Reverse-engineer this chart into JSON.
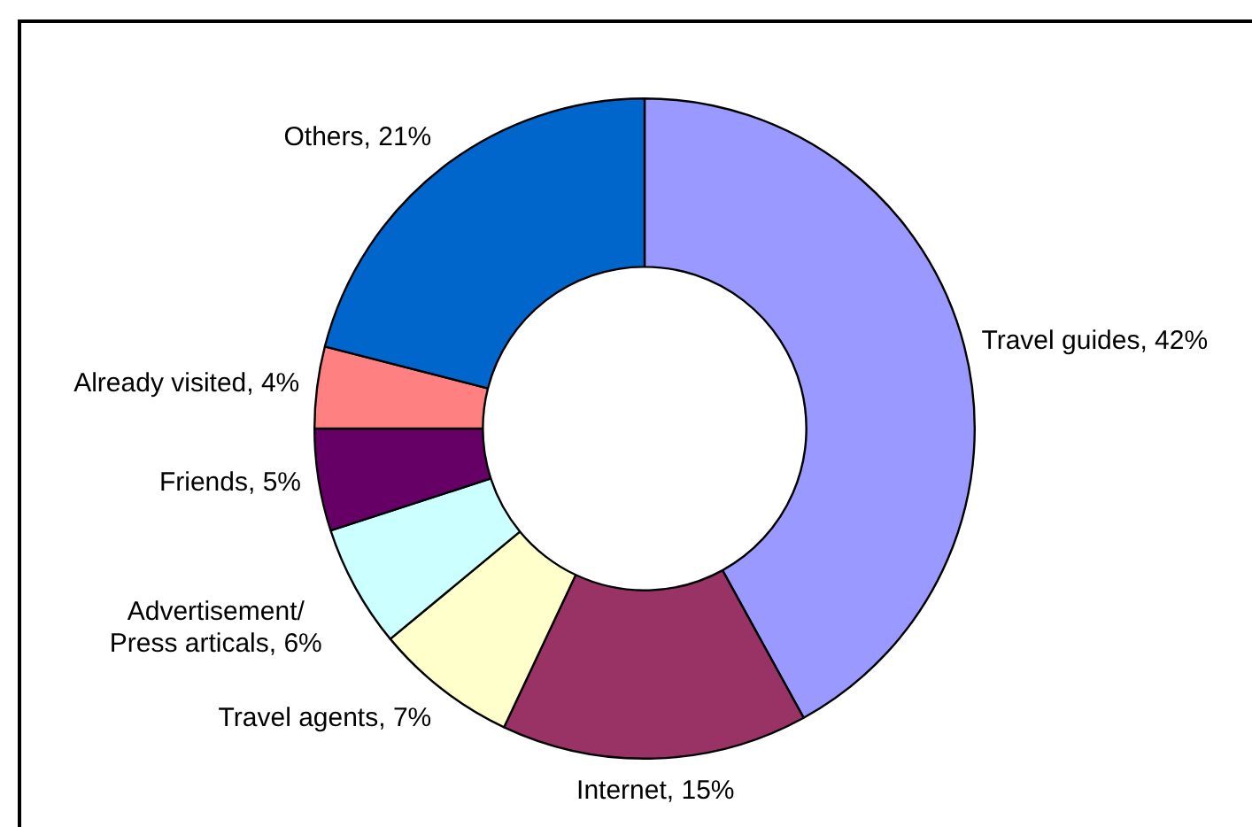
{
  "chart_data": {
    "type": "donut",
    "categories": [
      "Travel guides",
      "Internet",
      "Travel agents",
      "Advertisement/ Press articals",
      "Friends",
      "Already visited",
      "Others"
    ],
    "values": [
      42,
      15,
      7,
      6,
      5,
      4,
      21
    ],
    "colors": [
      "#9999ff",
      "#993366",
      "#ffffcc",
      "#ccffff",
      "#660066",
      "#ff8080",
      "#0066cc"
    ],
    "value_labels": [
      "42%",
      "15%",
      "7%",
      "6%",
      "5%",
      "4%",
      "21%"
    ],
    "legend": false
  }
}
